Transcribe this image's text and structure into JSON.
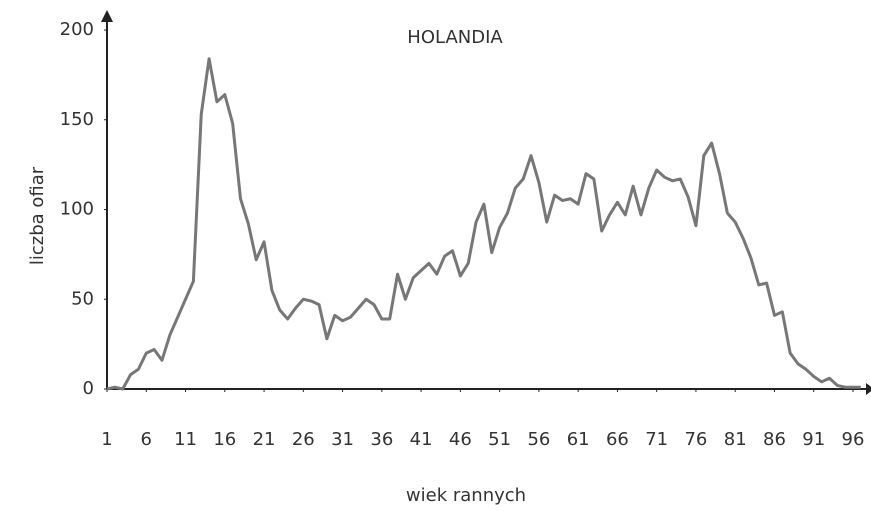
{
  "chart_data": {
    "type": "line",
    "title": "HOLANDIA",
    "x_label": "wiek rannych",
    "y_label": "liczba ofiar",
    "x": [
      1,
      2,
      3,
      4,
      5,
      6,
      7,
      8,
      9,
      10,
      11,
      12,
      13,
      14,
      15,
      16,
      17,
      18,
      19,
      20,
      21,
      22,
      23,
      24,
      25,
      26,
      27,
      28,
      29,
      30,
      31,
      32,
      33,
      34,
      35,
      36,
      37,
      38,
      39,
      40,
      41,
      42,
      43,
      44,
      45,
      46,
      47,
      48,
      49,
      50,
      51,
      52,
      53,
      54,
      55,
      56,
      57,
      58,
      59,
      60,
      61,
      62,
      63,
      64,
      65,
      66,
      67,
      68,
      69,
      70,
      71,
      72,
      73,
      74,
      75,
      76,
      77,
      78,
      79,
      80,
      81,
      82,
      83,
      84,
      85,
      86,
      87,
      88,
      89,
      90,
      91,
      92,
      93,
      94,
      95,
      96,
      97
    ],
    "series": [
      {
        "name": "HOLANDIA",
        "color": "#777777",
        "values": [
          0,
          1,
          0,
          8,
          11,
          20,
          22,
          16,
          30,
          40,
          50,
          60,
          153,
          184,
          160,
          164,
          148,
          106,
          92,
          72,
          82,
          55,
          44,
          39,
          45,
          50,
          49,
          47,
          28,
          41,
          38,
          40,
          45,
          50,
          47,
          39,
          39,
          64,
          50,
          62,
          66,
          70,
          64,
          74,
          77,
          63,
          70,
          93,
          103,
          76,
          90,
          98,
          112,
          117,
          130,
          115,
          93,
          108,
          105,
          106,
          103,
          120,
          117,
          88,
          97,
          104,
          97,
          113,
          97,
          112,
          122,
          118,
          116,
          117,
          107,
          91,
          130,
          137,
          120,
          98,
          93,
          84,
          73,
          58,
          59,
          41,
          43,
          20,
          14,
          11,
          7,
          4,
          6,
          2,
          1,
          1,
          1
        ]
      }
    ],
    "xlim": [
      1,
      98
    ],
    "xticks": [
      1,
      6,
      11,
      16,
      21,
      26,
      31,
      36,
      41,
      46,
      51,
      56,
      61,
      66,
      71,
      76,
      81,
      86,
      91,
      96
    ],
    "ylim": [
      0,
      200
    ],
    "yticks": [
      0,
      50,
      100,
      150,
      200
    ]
  }
}
